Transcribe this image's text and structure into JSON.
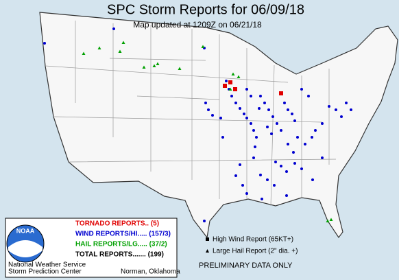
{
  "header": {
    "title": "SPC Storm Reports for 06/09/18",
    "subtitle": "Map updated at 1209Z on 06/21/18"
  },
  "legend": {
    "items": [
      {
        "label": "TORNADO REPORTS.. (5)",
        "color": "#e00000"
      },
      {
        "label": "WIND REPORTS/HI..... (157/3)",
        "color": "#0000d0"
      },
      {
        "label": "HAIL REPORTS/LG..... (37/2)",
        "color": "#00a000"
      }
    ],
    "total": "TOTAL REPORTS....... (199)"
  },
  "key": [
    "High Wind Report (65KT+)",
    "Large Hail Report (2\" dia. +)"
  ],
  "notice": "PRELIMINARY DATA ONLY",
  "logo": "NOAA",
  "footer": [
    "National Weather Service",
    "Storm Prediction Center",
    "Norman, Oklahoma"
  ]
}
